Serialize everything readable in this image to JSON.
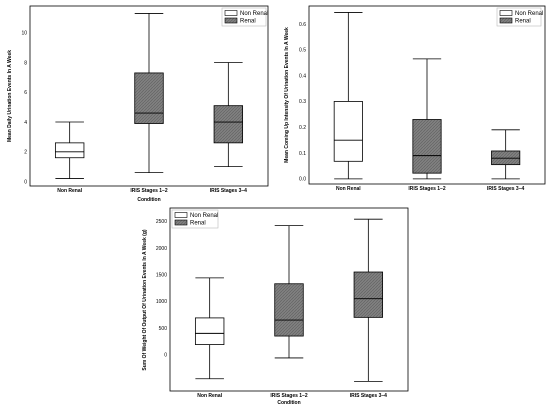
{
  "legend": {
    "items": [
      "Non Renal",
      "Renal"
    ]
  },
  "colors": {
    "non_renal": "#ffffff",
    "renal": "#808080",
    "stroke": "#000000"
  },
  "chart_data": [
    {
      "type": "box",
      "title": "",
      "xlabel": "Condition",
      "ylabel": "Mean Daily Urination Events In A Week",
      "categories": [
        "Non Renal",
        "IRIS Stages 1–2",
        "IRIS Stages 3–4"
      ],
      "groups": [
        "Non Renal",
        "Renal",
        "Renal"
      ],
      "boxes": [
        {
          "min": 0.2,
          "q1": 1.6,
          "median": 2.0,
          "q3": 2.6,
          "max": 4.0
        },
        {
          "min": 0.6,
          "q1": 3.9,
          "median": 4.6,
          "q3": 7.3,
          "max": 11.3
        },
        {
          "min": 1.0,
          "q1": 2.6,
          "median": 4.0,
          "q3": 5.1,
          "max": 8.0
        }
      ],
      "yticks": [
        0,
        2,
        4,
        6,
        8,
        10
      ],
      "ylim": [
        -0.3,
        11.8
      ],
      "legend_position": "top-right"
    },
    {
      "type": "box",
      "title": "",
      "xlabel": "",
      "ylabel": "Mean Coming Up Intensity Of Urination Events In A Week",
      "categories": [
        "Non Renal",
        "IRIS Stages 1–2",
        "IRIS Stages 3–4"
      ],
      "groups": [
        "Non Renal",
        "Renal",
        "Renal"
      ],
      "boxes": [
        {
          "min": 0.0,
          "q1": 0.068,
          "median": 0.15,
          "q3": 0.3,
          "max": 0.645
        },
        {
          "min": 0.0,
          "q1": 0.022,
          "median": 0.09,
          "q3": 0.23,
          "max": 0.465
        },
        {
          "min": 0.0,
          "q1": 0.055,
          "median": 0.08,
          "q3": 0.108,
          "max": 0.19
        }
      ],
      "yticks": [
        0.0,
        0.1,
        0.2,
        0.3,
        0.4,
        0.5,
        0.6
      ],
      "ylim": [
        -0.02,
        0.67
      ],
      "legend_position": "top-right"
    },
    {
      "type": "box",
      "title": "",
      "xlabel": "Condition",
      "ylabel": "Sum Of Weight Of Output Of Urination Events In A Week (g)",
      "categories": [
        "Non Renal",
        "IRIS Stages 1–2",
        "IRIS Stages 3–4"
      ],
      "groups": [
        "Non Renal",
        "Renal",
        "Renal"
      ],
      "boxes": [
        {
          "min": -450,
          "q1": 190,
          "median": 400,
          "q3": 690,
          "max": 1440
        },
        {
          "min": -60,
          "q1": 350,
          "median": 650,
          "q3": 1330,
          "max": 2420
        },
        {
          "min": -500,
          "q1": 700,
          "median": 1050,
          "q3": 1550,
          "max": 2540
        }
      ],
      "yticks": [
        0,
        500,
        1000,
        1500,
        2000,
        2500
      ],
      "ylim": [
        -680,
        2750
      ],
      "legend_position": "top-left"
    }
  ]
}
